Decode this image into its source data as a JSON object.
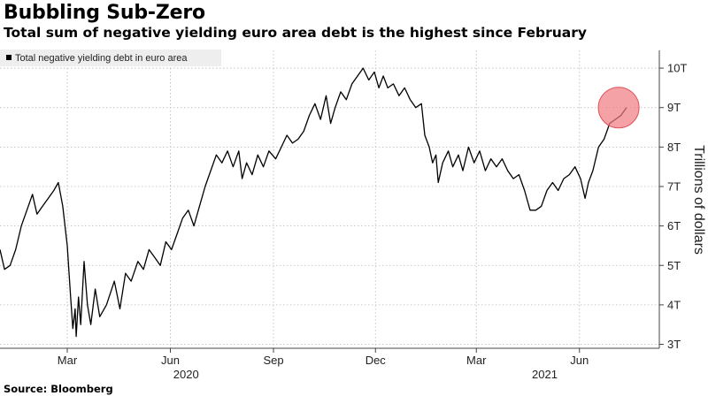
{
  "title": "Bubbling Sub-Zero",
  "subtitle": "Total sum of negative yielding euro area debt is the highest since February",
  "source": "Source: Bloomberg",
  "colors": {
    "line": "#000000",
    "grid": "#b8b8b8",
    "highlight": "#f07a80",
    "legend_bg": "#eeeeee"
  },
  "chart_data": {
    "type": "line",
    "title": "Bubbling Sub-Zero",
    "subtitle": "Total sum of negative yielding euro area debt is the highest since February",
    "ylabel": "Trillions of dollars",
    "xlabel": "",
    "ylim": [
      2.9,
      10.45
    ],
    "y_ticks": [
      3,
      4,
      5,
      6,
      7,
      8,
      9,
      10
    ],
    "y_tick_labels": [
      "3T",
      "4T",
      "5T",
      "6T",
      "7T",
      "8T",
      "9T",
      "10T"
    ],
    "x_range": [
      "2020-01-01",
      "2021-08-01"
    ],
    "x_ticks": [
      {
        "date": "2020-03-01",
        "label": "Mar"
      },
      {
        "date": "2020-06-01",
        "label": "Jun"
      },
      {
        "date": "2020-09-01",
        "label": "Sep"
      },
      {
        "date": "2020-12-01",
        "label": "Dec"
      },
      {
        "date": "2021-03-01",
        "label": "Mar"
      },
      {
        "date": "2021-06-01",
        "label": "Jun"
      }
    ],
    "year_labels": [
      {
        "date": "2020-06-15",
        "label": "2020"
      },
      {
        "date": "2021-05-01",
        "label": "2021"
      }
    ],
    "grid": true,
    "y_axis_side": "right",
    "legend_position": "top-left",
    "series": [
      {
        "name": "Total negative yielding debt in euro area",
        "points": [
          [
            "2020-01-01",
            5.4
          ],
          [
            "2020-01-05",
            4.9
          ],
          [
            "2020-01-10",
            5.0
          ],
          [
            "2020-01-15",
            5.4
          ],
          [
            "2020-01-20",
            6.0
          ],
          [
            "2020-01-25",
            6.4
          ],
          [
            "2020-01-30",
            6.8
          ],
          [
            "2020-02-03",
            6.3
          ],
          [
            "2020-02-08",
            6.5
          ],
          [
            "2020-02-13",
            6.7
          ],
          [
            "2020-02-18",
            6.9
          ],
          [
            "2020-02-22",
            7.1
          ],
          [
            "2020-02-26",
            6.5
          ],
          [
            "2020-03-01",
            5.5
          ],
          [
            "2020-03-04",
            4.2
          ],
          [
            "2020-03-06",
            3.4
          ],
          [
            "2020-03-08",
            3.9
          ],
          [
            "2020-03-09",
            3.2
          ],
          [
            "2020-03-11",
            4.2
          ],
          [
            "2020-03-13",
            3.5
          ],
          [
            "2020-03-16",
            5.1
          ],
          [
            "2020-03-19",
            4.0
          ],
          [
            "2020-03-22",
            3.5
          ],
          [
            "2020-03-26",
            4.4
          ],
          [
            "2020-03-30",
            3.7
          ],
          [
            "2020-04-05",
            4.0
          ],
          [
            "2020-04-12",
            4.6
          ],
          [
            "2020-04-17",
            3.9
          ],
          [
            "2020-04-22",
            4.8
          ],
          [
            "2020-04-27",
            4.6
          ],
          [
            "2020-05-03",
            5.1
          ],
          [
            "2020-05-08",
            4.9
          ],
          [
            "2020-05-13",
            5.4
          ],
          [
            "2020-05-18",
            5.2
          ],
          [
            "2020-05-23",
            5.0
          ],
          [
            "2020-05-28",
            5.6
          ],
          [
            "2020-06-02",
            5.4
          ],
          [
            "2020-06-07",
            5.8
          ],
          [
            "2020-06-12",
            6.2
          ],
          [
            "2020-06-17",
            6.4
          ],
          [
            "2020-06-22",
            6.0
          ],
          [
            "2020-06-27",
            6.5
          ],
          [
            "2020-07-02",
            7.0
          ],
          [
            "2020-07-07",
            7.4
          ],
          [
            "2020-07-12",
            7.8
          ],
          [
            "2020-07-17",
            7.6
          ],
          [
            "2020-07-22",
            7.9
          ],
          [
            "2020-07-27",
            7.5
          ],
          [
            "2020-08-01",
            7.9
          ],
          [
            "2020-08-04",
            7.2
          ],
          [
            "2020-08-08",
            7.6
          ],
          [
            "2020-08-13",
            7.3
          ],
          [
            "2020-08-18",
            7.8
          ],
          [
            "2020-08-23",
            7.5
          ],
          [
            "2020-08-28",
            7.9
          ],
          [
            "2020-09-03",
            7.7
          ],
          [
            "2020-09-08",
            8.0
          ],
          [
            "2020-09-13",
            8.3
          ],
          [
            "2020-09-18",
            8.1
          ],
          [
            "2020-09-23",
            8.2
          ],
          [
            "2020-09-28",
            8.4
          ],
          [
            "2020-10-03",
            8.8
          ],
          [
            "2020-10-08",
            9.1
          ],
          [
            "2020-10-13",
            8.7
          ],
          [
            "2020-10-18",
            9.3
          ],
          [
            "2020-10-22",
            8.6
          ],
          [
            "2020-10-26",
            9.0
          ],
          [
            "2020-10-31",
            9.4
          ],
          [
            "2020-11-05",
            9.2
          ],
          [
            "2020-11-10",
            9.6
          ],
          [
            "2020-11-15",
            9.8
          ],
          [
            "2020-11-20",
            10.0
          ],
          [
            "2020-11-25",
            9.7
          ],
          [
            "2020-11-30",
            9.9
          ],
          [
            "2020-12-04",
            9.5
          ],
          [
            "2020-12-08",
            9.8
          ],
          [
            "2020-12-12",
            9.5
          ],
          [
            "2020-12-17",
            9.6
          ],
          [
            "2020-12-22",
            9.3
          ],
          [
            "2020-12-27",
            9.5
          ],
          [
            "2021-01-01",
            9.2
          ],
          [
            "2021-01-06",
            9.0
          ],
          [
            "2021-01-11",
            9.1
          ],
          [
            "2021-01-14",
            8.3
          ],
          [
            "2021-01-18",
            8.0
          ],
          [
            "2021-01-21",
            7.6
          ],
          [
            "2021-01-24",
            7.8
          ],
          [
            "2021-01-26",
            7.1
          ],
          [
            "2021-01-30",
            7.6
          ],
          [
            "2021-02-04",
            7.9
          ],
          [
            "2021-02-08",
            7.5
          ],
          [
            "2021-02-13",
            7.8
          ],
          [
            "2021-02-17",
            7.4
          ],
          [
            "2021-02-22",
            8.0
          ],
          [
            "2021-02-27",
            7.6
          ],
          [
            "2021-03-04",
            7.9
          ],
          [
            "2021-03-09",
            7.4
          ],
          [
            "2021-03-14",
            7.7
          ],
          [
            "2021-03-19",
            7.5
          ],
          [
            "2021-03-24",
            7.7
          ],
          [
            "2021-03-29",
            7.4
          ],
          [
            "2021-04-03",
            7.2
          ],
          [
            "2021-04-08",
            7.3
          ],
          [
            "2021-04-13",
            6.9
          ],
          [
            "2021-04-18",
            6.4
          ],
          [
            "2021-04-23",
            6.4
          ],
          [
            "2021-04-28",
            6.5
          ],
          [
            "2021-05-03",
            6.9
          ],
          [
            "2021-05-08",
            7.1
          ],
          [
            "2021-05-13",
            6.9
          ],
          [
            "2021-05-18",
            7.2
          ],
          [
            "2021-05-23",
            7.3
          ],
          [
            "2021-05-28",
            7.5
          ],
          [
            "2021-06-02",
            7.2
          ],
          [
            "2021-06-06",
            6.7
          ],
          [
            "2021-06-09",
            7.1
          ],
          [
            "2021-06-13",
            7.4
          ],
          [
            "2021-06-18",
            8.0
          ],
          [
            "2021-06-23",
            8.2
          ],
          [
            "2021-06-28",
            8.6
          ],
          [
            "2021-07-03",
            8.7
          ],
          [
            "2021-07-08",
            8.8
          ],
          [
            "2021-07-13",
            9.0
          ]
        ]
      }
    ],
    "highlight": {
      "date": "2021-07-06",
      "value": 9.0
    }
  }
}
